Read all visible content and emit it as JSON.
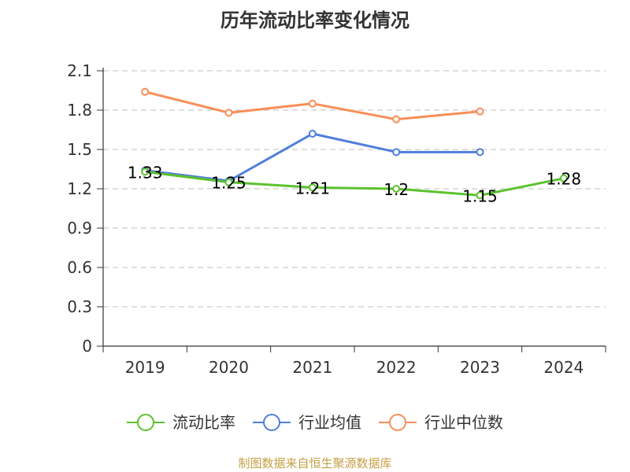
{
  "title": "历年流动比率变化情况",
  "source_note": "制图数据来自恒生聚源数据库",
  "chart_data": {
    "type": "line",
    "title": "历年流动比率变化情况",
    "categories": [
      "2019",
      "2020",
      "2021",
      "2022",
      "2023",
      "2024"
    ],
    "ylim": [
      0,
      2.1
    ],
    "yticks": [
      "0",
      "0.3",
      "0.6",
      "0.9",
      "1.2",
      "1.5",
      "1.8",
      "2.1"
    ],
    "grid": true,
    "legend_position": "bottom",
    "series": [
      {
        "name": "流动比率",
        "color": "#5cc22e",
        "values": [
          1.33,
          1.25,
          1.21,
          1.2,
          1.15,
          1.28
        ],
        "labels": [
          "1.33",
          "1.25",
          "1.21",
          "1.2",
          "1.15",
          "1.28"
        ]
      },
      {
        "name": "行业均值",
        "color": "#4f7fdb",
        "values": [
          1.34,
          1.26,
          1.62,
          1.48,
          1.48,
          null
        ]
      },
      {
        "name": "行业中位数",
        "color": "#f88e58",
        "values": [
          1.94,
          1.78,
          1.85,
          1.73,
          1.79,
          null
        ]
      }
    ]
  }
}
